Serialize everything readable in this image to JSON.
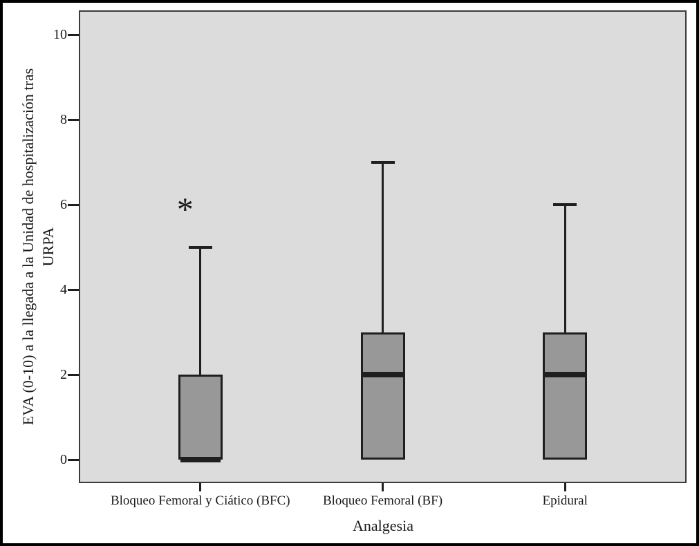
{
  "chart_data": {
    "type": "boxplot",
    "xlabel": "Analgesia",
    "ylabel": "EVA (0-10) a la llegada a la Unidad de hospitalización tras URPA",
    "ylabel_lines": [
      "EVA (0-10) a la llegada a la Unidad de hospitalización tras",
      "URPA"
    ],
    "ylim": [
      0,
      10
    ],
    "yticks": [
      "0",
      "2",
      "4",
      "6",
      "8",
      "10"
    ],
    "grid": false,
    "legend": false,
    "categories": [
      "Bloqueo Femoral y Ciático (BFC)",
      "Bloqueo Femoral (BF)",
      "Epidural"
    ],
    "series": [
      {
        "category": "Bloqueo Femoral y Ciático (BFC)",
        "whisker_low": 0,
        "q1": 0,
        "median": 0,
        "q3": 2,
        "whisker_high": 5,
        "outliers": [
          {
            "value": 6,
            "marker": "*"
          }
        ]
      },
      {
        "category": "Bloqueo Femoral (BF)",
        "whisker_low": 0,
        "q1": 0,
        "median": 2,
        "q3": 3,
        "whisker_high": 7,
        "outliers": []
      },
      {
        "category": "Epidural",
        "whisker_low": 0,
        "q1": 0,
        "median": 2,
        "q3": 3,
        "whisker_high": 6,
        "outliers": []
      }
    ],
    "colors": {
      "box_fill": "#989898",
      "line": "#1f1f1f",
      "plot_bg": "#dcdcdc",
      "outer_bg": "#ffffff",
      "frame_border": "#000000",
      "text": "#1a1a1a"
    }
  }
}
